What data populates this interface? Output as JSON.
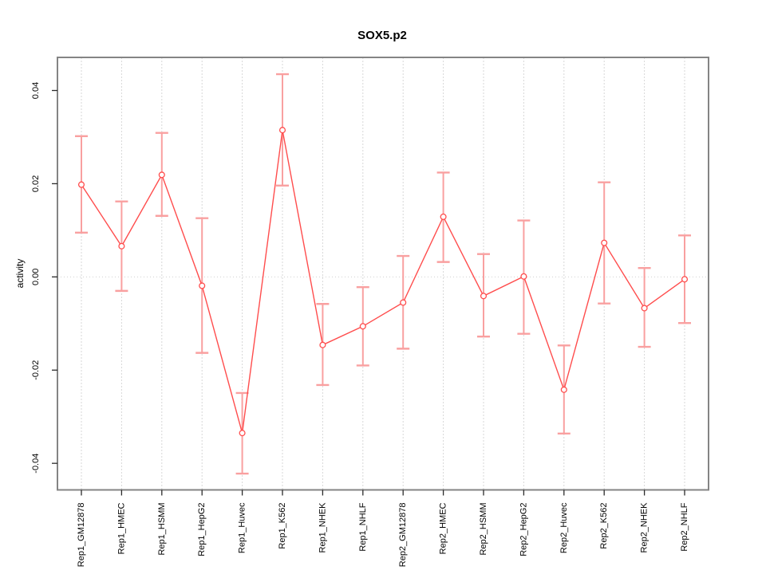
{
  "title": "SOX5.p2",
  "colors": {
    "series_line": "#ff4d4d",
    "marker_stroke": "#ff4d4d",
    "error_bar": "#f9a0a0",
    "gridline": "#d7d7d7",
    "zero_line": "#d0d0d0",
    "plot_border": "#848484",
    "axis_tick": "#2b2b2b",
    "text": "#000000",
    "background": "#ffffff"
  },
  "chart_data": {
    "type": "line",
    "title": "SOX5.p2",
    "xlabel": "",
    "ylabel": "activity",
    "legend_position": "none",
    "grid": "vertical dashed gridline at each category; dotted horizontal line at y=0",
    "marker": "open-circle",
    "ylim": [
      -0.0457,
      0.0471
    ],
    "ytick_values": [
      -0.04,
      -0.02,
      0,
      0.02,
      0.04
    ],
    "ytick_labels": [
      "-0.04",
      "-0.02",
      "0.00",
      "0.02",
      "0.04"
    ],
    "categories": [
      "Rep1_GM12878",
      "Rep1_HMEC",
      "Rep1_HSMM",
      "Rep1_HepG2",
      "Rep1_Huvec",
      "Rep1_K562",
      "Rep1_NHEK",
      "Rep1_NHLF",
      "Rep2_GM12878",
      "Rep2_HMEC",
      "Rep2_HSMM",
      "Rep2_HepG2",
      "Rep2_Huvec",
      "Rep2_K562",
      "Rep2_NHEK",
      "Rep2_NHLF"
    ],
    "series": [
      {
        "name": "activity",
        "values": [
          0.0198,
          0.0066,
          0.0219,
          -0.0019,
          -0.0335,
          0.0315,
          -0.0146,
          -0.0106,
          -0.0055,
          0.0129,
          -0.0041,
          0.0001,
          -0.0242,
          0.0073,
          -0.0067,
          -0.0005
        ],
        "error_low": [
          0.0095,
          -0.003,
          0.0131,
          -0.0163,
          -0.0422,
          0.0196,
          -0.0232,
          -0.019,
          -0.0154,
          0.0032,
          -0.0128,
          -0.0122,
          -0.0336,
          -0.0057,
          -0.015,
          -0.0099
        ],
        "error_high": [
          0.0302,
          0.0162,
          0.0309,
          0.0126,
          -0.0249,
          0.0435,
          -0.0058,
          -0.0022,
          0.0045,
          0.0224,
          0.0049,
          0.0121,
          -0.0147,
          0.0203,
          0.0019,
          0.0089
        ]
      }
    ]
  }
}
